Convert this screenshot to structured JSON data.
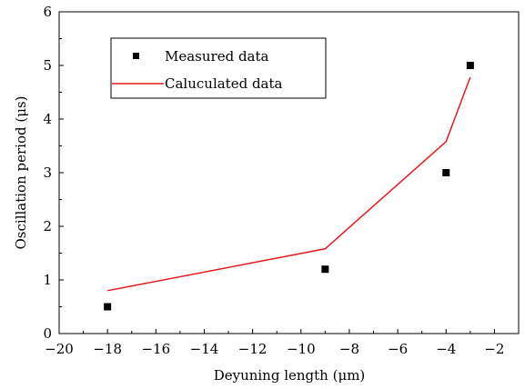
{
  "chart_data": {
    "type": "scatter",
    "xlabel": "Deyuning length (μm)",
    "ylabel": "Oscillation period (μs)",
    "xlim": [
      -20,
      -1
    ],
    "ylim": [
      0,
      6
    ],
    "x_ticks": [
      -20,
      -18,
      -16,
      -14,
      -12,
      -10,
      -8,
      -6,
      -4,
      -2
    ],
    "y_ticks": [
      0,
      1,
      2,
      3,
      4,
      5,
      6
    ],
    "grid": false,
    "legend_position": "top-left",
    "series": [
      {
        "name": "Measured data",
        "kind": "scatter",
        "marker": "square",
        "color": "#000000",
        "x": [
          -18,
          -9,
          -4,
          -3
        ],
        "y": [
          0.5,
          1.2,
          3.0,
          5.0
        ]
      },
      {
        "name": "Caluculated data",
        "kind": "line",
        "color": "#e41a1c",
        "x": [
          -18,
          -9,
          -4,
          -3
        ],
        "y": [
          0.8,
          1.58,
          3.58,
          4.78
        ]
      }
    ]
  }
}
